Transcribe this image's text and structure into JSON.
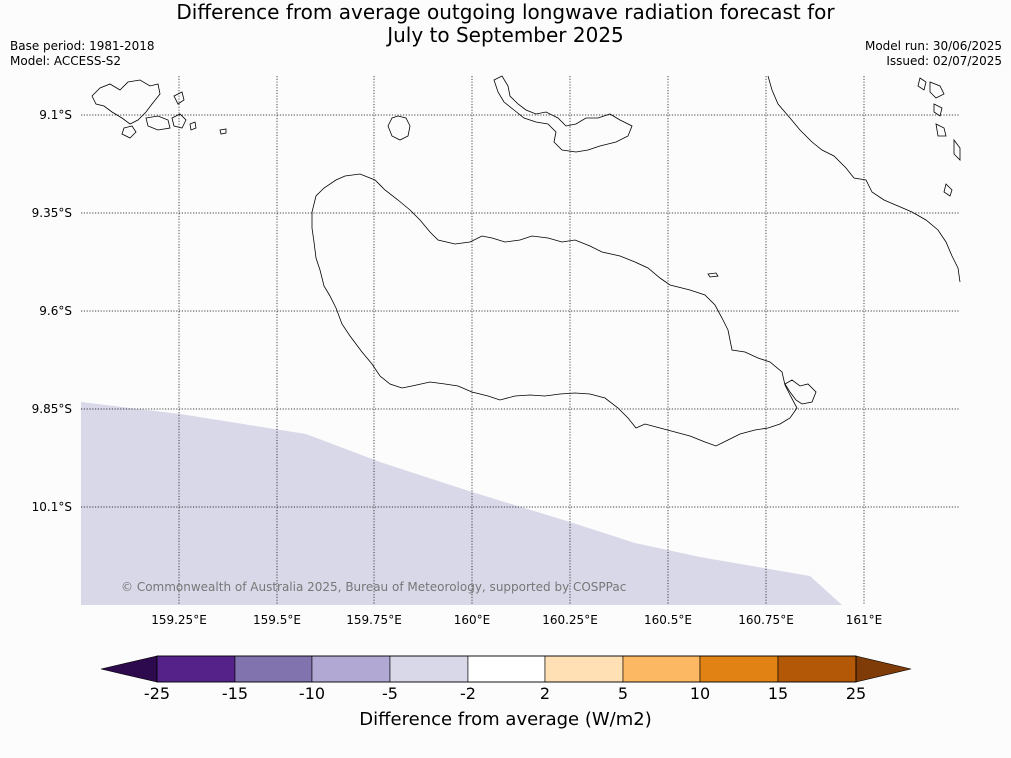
{
  "title": {
    "line1": "Difference from average outgoing longwave radiation forecast for",
    "line2": "July to September 2025"
  },
  "meta": {
    "base_period": "Base period: 1981-2018",
    "model": "Model: ACCESS-S2",
    "model_run": "Model run: 30/06/2025",
    "issued": "Issued: 02/07/2025"
  },
  "map": {
    "lat_labels": [
      "9.1°S",
      "9.35°S",
      "9.6°S",
      "9.85°S",
      "10.1°S"
    ],
    "lon_labels": [
      "159.25°E",
      "159.5°E",
      "159.75°E",
      "160°E",
      "160.25°E",
      "160.5°E",
      "160.75°E",
      "161°E"
    ],
    "shaded_category": "-5 to -2",
    "credit": "© Commonwealth of Australia 2025, Bureau of Meteorology, supported by COSPPac"
  },
  "colorbar": {
    "title": "Difference from average (W/m2)",
    "ticks": [
      "-25",
      "-15",
      "-10",
      "-5",
      "-2",
      "2",
      "5",
      "10",
      "15",
      "25"
    ],
    "colors": {
      "below": "#2d0a4e",
      "bins": [
        "#552289",
        "#8173ad",
        "#b1a9d3",
        "#d8d8e9",
        "#ffffff",
        "#ffe0b5",
        "#fdb863",
        "#e08214",
        "#b35806"
      ],
      "above": "#7f3b08"
    }
  }
}
